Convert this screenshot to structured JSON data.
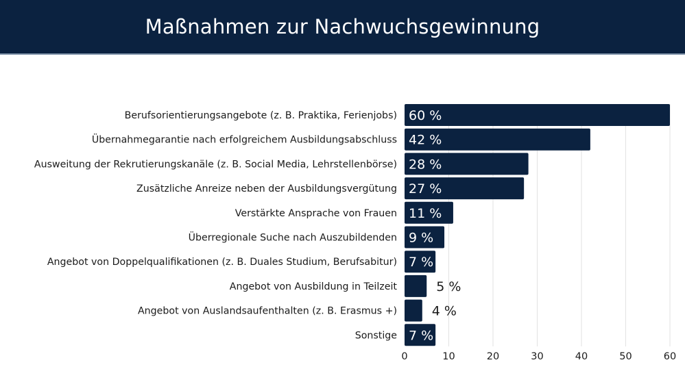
{
  "header": {
    "title": "Maßnahmen zur Nachwuchsgewinnung"
  },
  "colors": {
    "bar": "#0b2240",
    "header_bg": "#0b2240",
    "grid": "#e2e2e2",
    "text": "#1a1a1a"
  },
  "chart_data": {
    "type": "bar",
    "orientation": "horizontal",
    "title": "Maßnahmen zur Nachwuchsgewinnung",
    "xlabel": "",
    "ylabel": "",
    "xlim": [
      0,
      60
    ],
    "xticks": [
      0,
      10,
      20,
      30,
      40,
      50,
      60
    ],
    "grid": true,
    "legend": "none",
    "unit": "%",
    "categories": [
      "Berufsorientierungsangebote (z. B. Praktika, Ferienjobs)",
      "Übernahmegarantie nach erfolgreichem Ausbildungsabschluss",
      "Ausweitung der Rekrutierungskanäle (z. B. Social Media, Lehrstellenbörse)",
      "Zusätzliche Anreize neben der Ausbildungsvergütung",
      "Verstärkte Ansprache von Frauen",
      "Überregionale Suche nach Auszubildenden",
      "Angebot von Doppelqualifikationen (z. B. Duales Studium, Berufsabitur)",
      "Angebot von Ausbildung in Teilzeit",
      "Angebot von Auslandsaufenthalten (z. B. Erasmus +)",
      "Sonstige"
    ],
    "values": [
      60,
      42,
      28,
      27,
      11,
      9,
      7,
      5,
      4,
      7
    ],
    "data_labels": [
      "60 %",
      "42 %",
      "28 %",
      "27 %",
      "11 %",
      "9 %",
      "7 %",
      "5 %",
      "4 %",
      "7 %"
    ]
  }
}
